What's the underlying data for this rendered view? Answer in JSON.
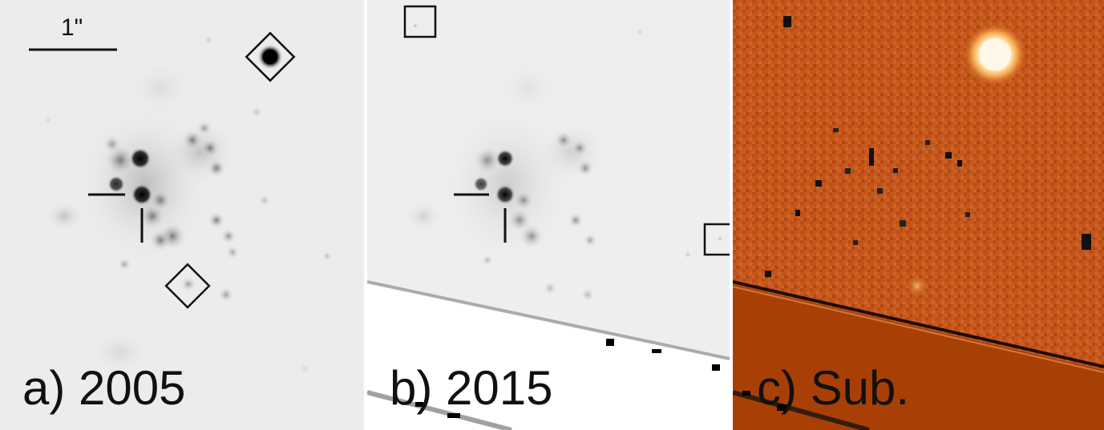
{
  "figure": {
    "panels": [
      {
        "id": "a",
        "label": "a) 2005"
      },
      {
        "id": "b",
        "label": "b) 2015"
      },
      {
        "id": "c",
        "label": "c) Sub."
      }
    ],
    "scale_bar": {
      "label": "1\""
    },
    "colors": {
      "grayscale_background": "#ececec",
      "difference_background": "#c4561b",
      "difference_masked": "#a84006",
      "marker": "#111111",
      "bright_residual": "#fff6df"
    }
  }
}
